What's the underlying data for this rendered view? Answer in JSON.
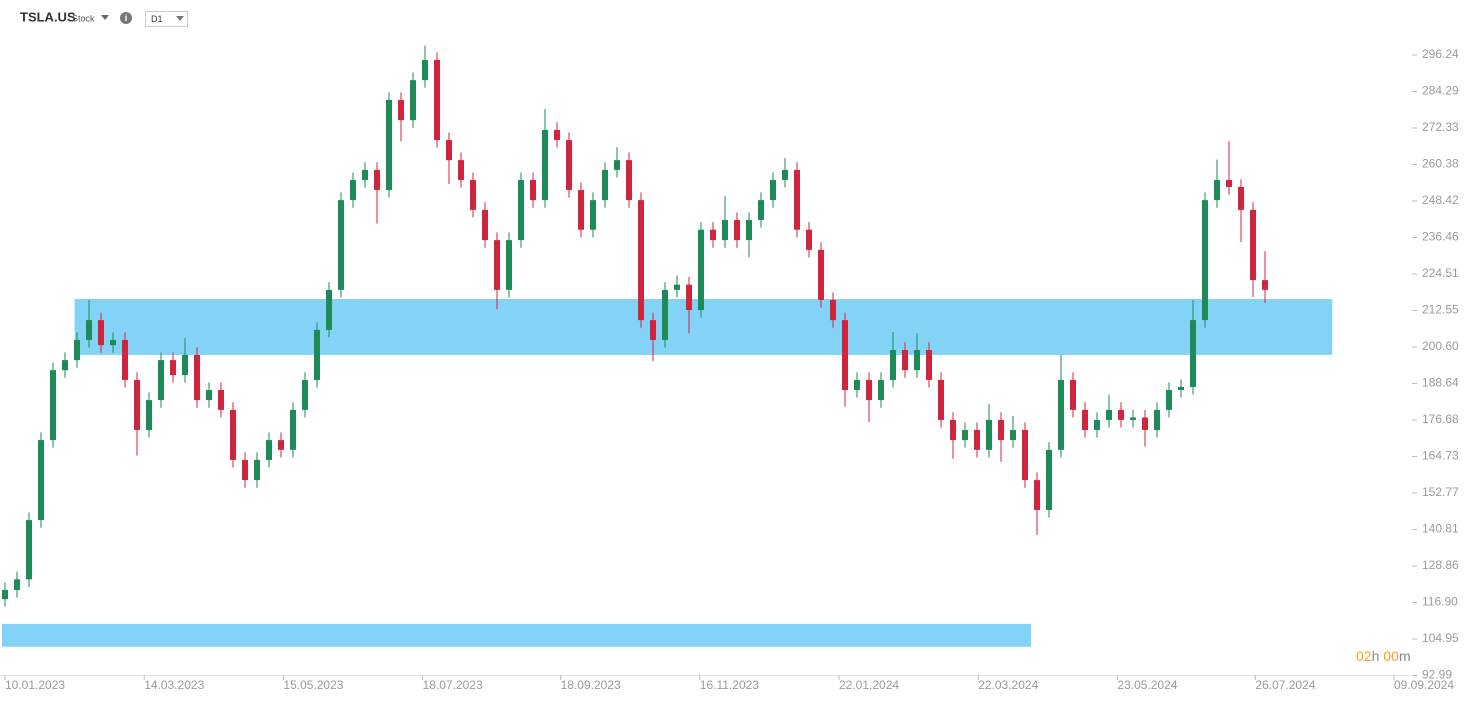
{
  "header": {
    "symbol": "TSLA.US",
    "kind": "Stock",
    "interval": "D1"
  },
  "timer": {
    "hours": "02",
    "hours_unit": "h",
    "minutes": "00",
    "minutes_unit": "m"
  },
  "chart_data": {
    "type": "candlestick",
    "up_color": "#1e8a57",
    "down_color": "#d0253e",
    "zone_color": "#83d3f7",
    "ylim": [
      84.31,
      314.25
    ],
    "yticks": [
      296.24,
      284.29,
      272.33,
      260.38,
      248.42,
      236.46,
      224.51,
      212.55,
      {
        "value": 200.6,
        "label": "200.60"
      },
      188.64,
      176.68,
      164.73,
      152.77,
      140.81,
      128.86,
      {
        "value": 116.9,
        "label": "116.90"
      },
      104.95,
      92.99
    ],
    "xlim": [
      0,
      115.75
    ],
    "xticks": [
      {
        "value": 0,
        "label": "10.01.2023"
      },
      {
        "value": 11.6,
        "label": "14.03.2023"
      },
      {
        "value": 23.2,
        "label": "15.05.2023"
      },
      {
        "value": 34.8,
        "label": "18.07.2023"
      },
      {
        "value": 46.3,
        "label": "18.09.2023"
      },
      {
        "value": 57.9,
        "label": "16.11.2023"
      },
      {
        "value": 69.5,
        "label": "22.01.2024"
      },
      {
        "value": 81.1,
        "label": "22.03.2024"
      },
      {
        "value": 92.7,
        "label": "23.05.2024"
      },
      {
        "value": 104.2,
        "label": "26.07.2024"
      },
      {
        "value": 115.75,
        "label": "09.09.2024"
      }
    ],
    "zones": [
      {
        "x": [
          5.8,
          110.6
        ],
        "y": [
          198,
          216.3
        ]
      },
      {
        "x": [
          -0.25,
          85.5
        ],
        "y": [
          102.4,
          109.9
        ]
      }
    ],
    "candles": [
      [
        118,
        123.5,
        115.5,
        121
      ],
      [
        121,
        127,
        118.5,
        124.5
      ],
      [
        124.5,
        146.4,
        122,
        143.9
      ],
      [
        143.9,
        172.6,
        141.4,
        170.1
      ],
      [
        170.1,
        195.5,
        167.6,
        193
      ],
      [
        193,
        198.8,
        190.5,
        196.3
      ],
      [
        196.3,
        205.4,
        193.8,
        202.9
      ],
      [
        202.9,
        216,
        200.4,
        209.4
      ],
      [
        209.4,
        211.9,
        198.7,
        201.2
      ],
      [
        201.2,
        205.4,
        198.7,
        202.9
      ],
      [
        202.9,
        205.4,
        187.3,
        189.8
      ],
      [
        189.8,
        192.3,
        165,
        173.4
      ],
      [
        173.4,
        185.7,
        170.9,
        183.2
      ],
      [
        183.2,
        198.8,
        180.7,
        196.3
      ],
      [
        196.3,
        198.8,
        188.9,
        191.4
      ],
      [
        191.4,
        203.5,
        188.9,
        198
      ],
      [
        198,
        200.5,
        180.7,
        183.2
      ],
      [
        183.2,
        189,
        180.7,
        186.5
      ],
      [
        186.5,
        189,
        177.5,
        180
      ],
      [
        180,
        182.5,
        161.1,
        163.6
      ],
      [
        163.6,
        166.1,
        154.5,
        157
      ],
      [
        157,
        166.1,
        154.5,
        163.6
      ],
      [
        163.6,
        172.6,
        161.1,
        170.1
      ],
      [
        170.1,
        172.6,
        164.4,
        166.9
      ],
      [
        166.9,
        182.5,
        164.4,
        180
      ],
      [
        180,
        192.3,
        177.5,
        189.8
      ],
      [
        189.8,
        208.7,
        187.3,
        206.2
      ],
      [
        206.2,
        221.8,
        203.7,
        219.3
      ],
      [
        219.3,
        251.2,
        216.8,
        248.7
      ],
      [
        248.7,
        257.8,
        246.2,
        255.3
      ],
      [
        255.3,
        261.1,
        252.8,
        258.6
      ],
      [
        258.6,
        261.1,
        241,
        252
      ],
      [
        252,
        284,
        249.5,
        281.5
      ],
      [
        281.5,
        284,
        268,
        274.9
      ],
      [
        274.9,
        290.5,
        272.4,
        288
      ],
      [
        288,
        299.3,
        285.5,
        294.6
      ],
      [
        294.6,
        297.1,
        265.9,
        268.4
      ],
      [
        268.4,
        270.9,
        254,
        261.8
      ],
      [
        261.8,
        264.3,
        252.8,
        255.3
      ],
      [
        255.3,
        257.8,
        243,
        245.5
      ],
      [
        245.5,
        248,
        233.1,
        235.6
      ],
      [
        235.6,
        238.1,
        213,
        219.3
      ],
      [
        219.3,
        238.1,
        216.8,
        235.6
      ],
      [
        235.6,
        257.8,
        233.1,
        255.3
      ],
      [
        255.3,
        257.8,
        246.2,
        248.7
      ],
      [
        248.7,
        278.5,
        246.2,
        271.7
      ],
      [
        271.7,
        274.2,
        265.9,
        268.4
      ],
      [
        268.4,
        270.9,
        249.5,
        252
      ],
      [
        252,
        254.5,
        236.5,
        239
      ],
      [
        239,
        251.2,
        236.5,
        248.7
      ],
      [
        248.7,
        261.1,
        246.2,
        258.6
      ],
      [
        258.6,
        266,
        256.1,
        261.8
      ],
      [
        261.8,
        264.3,
        246.2,
        248.7
      ],
      [
        248.7,
        251.2,
        206.9,
        209.4
      ],
      [
        209.4,
        211.9,
        196,
        202.9
      ],
      [
        202.9,
        221.8,
        200.4,
        219.3
      ],
      [
        219.3,
        224,
        216.8,
        221
      ],
      [
        221,
        223.5,
        205,
        212.7
      ],
      [
        212.7,
        241.5,
        210.2,
        239
      ],
      [
        239,
        241.5,
        233.1,
        235.6
      ],
      [
        235.6,
        250,
        233.1,
        242.2
      ],
      [
        242.2,
        244.7,
        233.1,
        235.6
      ],
      [
        235.6,
        244.7,
        230,
        242.2
      ],
      [
        242.2,
        251.2,
        239.7,
        248.7
      ],
      [
        248.7,
        257.8,
        246.2,
        255.3
      ],
      [
        255.3,
        262.5,
        252.8,
        258.6
      ],
      [
        258.6,
        261.1,
        236.5,
        239
      ],
      [
        239,
        241.5,
        229.9,
        232.4
      ],
      [
        232.4,
        234.9,
        213.5,
        216
      ],
      [
        216,
        218.5,
        206.9,
        209.4
      ],
      [
        209.4,
        211.9,
        181,
        186.5
      ],
      [
        186.5,
        192.3,
        184,
        189.8
      ],
      [
        189.8,
        192.3,
        176,
        183.2
      ],
      [
        183.2,
        192.3,
        180.7,
        189.8
      ],
      [
        189.8,
        205.5,
        187.3,
        199.6
      ],
      [
        199.6,
        202.1,
        190.5,
        193
      ],
      [
        193,
        205,
        190.5,
        199.6
      ],
      [
        199.6,
        202.1,
        187.3,
        189.8
      ],
      [
        189.8,
        192.3,
        174.2,
        176.7
      ],
      [
        176.7,
        179.2,
        164,
        170.1
      ],
      [
        170.1,
        175.9,
        167.6,
        173.4
      ],
      [
        173.4,
        175.9,
        164.4,
        166.9
      ],
      [
        166.9,
        182,
        164.4,
        176.7
      ],
      [
        176.7,
        179.2,
        163,
        170.1
      ],
      [
        170.1,
        178,
        167.6,
        173.4
      ],
      [
        173.4,
        175.9,
        154.5,
        157
      ],
      [
        157,
        159.5,
        139,
        147.2
      ],
      [
        147.2,
        169.4,
        144.7,
        166.9
      ],
      [
        166.9,
        198,
        164.4,
        189.8
      ],
      [
        189.8,
        192.3,
        177.5,
        180
      ],
      [
        180,
        182.5,
        170.9,
        173.4
      ],
      [
        173.4,
        179.2,
        170.9,
        176.7
      ],
      [
        176.7,
        185,
        174.2,
        180
      ],
      [
        180,
        182.5,
        174.2,
        176.7
      ],
      [
        176.7,
        180,
        174.2,
        177.5
      ],
      [
        177.5,
        180,
        168,
        173.4
      ],
      [
        173.4,
        182.5,
        170.9,
        180
      ],
      [
        180,
        189,
        177.5,
        186.5
      ],
      [
        186.5,
        190,
        184,
        187.5
      ],
      [
        187.5,
        216,
        185,
        209.4
      ],
      [
        209.4,
        251.2,
        206.9,
        248.7
      ],
      [
        248.7,
        262,
        246.2,
        255.3
      ],
      [
        255.3,
        268,
        250.5,
        253
      ],
      [
        253,
        255.5,
        235,
        245.5
      ],
      [
        245.5,
        248,
        217,
        222.5
      ],
      [
        222.5,
        232,
        215,
        219.3
      ]
    ]
  }
}
